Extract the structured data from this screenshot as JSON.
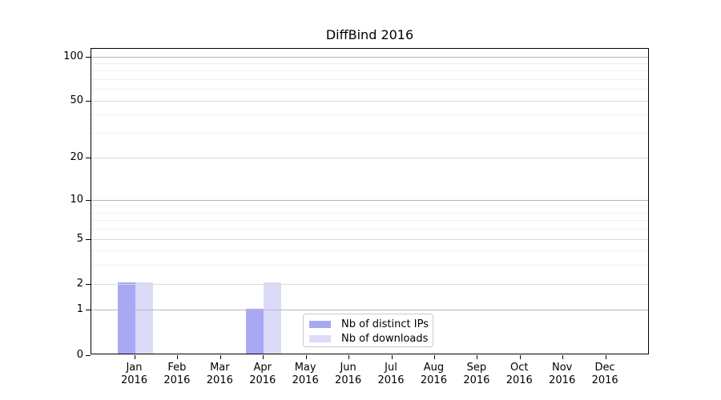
{
  "chart_data": {
    "type": "bar",
    "title": "DiffBind 2016",
    "categories": [
      "Jan",
      "Feb",
      "Mar",
      "Apr",
      "May",
      "Jun",
      "Jul",
      "Aug",
      "Sep",
      "Oct",
      "Nov",
      "Dec"
    ],
    "year_label": "2016",
    "series": [
      {
        "name": "Nb of distinct IPs",
        "color": "#a8a8f5",
        "values": [
          2,
          0,
          0,
          1,
          0,
          0,
          0,
          0,
          0,
          0,
          0,
          0
        ]
      },
      {
        "name": "Nb of downloads",
        "color": "#dbdbf9",
        "values": [
          2,
          0,
          0,
          2,
          0,
          0,
          0,
          0,
          0,
          0,
          0,
          0
        ]
      }
    ],
    "yaxis": {
      "scale": "log1p",
      "ylim": [
        0,
        100
      ],
      "tick_values": [
        0,
        1,
        2,
        5,
        10,
        20,
        50,
        100
      ],
      "decade_gridlines": [
        1,
        10,
        100
      ],
      "mid_gridlines": [
        2,
        5,
        20,
        50
      ],
      "minor_gridlines": [
        3,
        4,
        6,
        7,
        8,
        9,
        30,
        40,
        60,
        70,
        80,
        90
      ]
    },
    "layout_hints": {
      "grid": "horizontal",
      "legend_position": "bottom-center",
      "background": "#ffffff",
      "axis_color": "#000000",
      "grid_decade_color": "#b7b7b7",
      "grid_mid_color": "#dadada",
      "grid_minor_color": "#efefef"
    }
  }
}
